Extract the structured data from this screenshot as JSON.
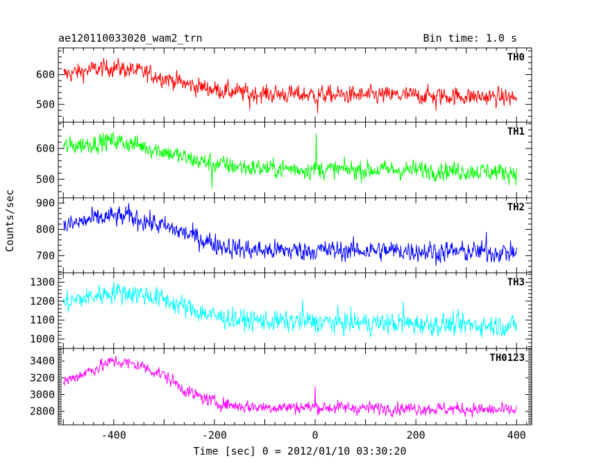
{
  "header": {
    "title": "ae120110033020_wam2_trn",
    "bin_time": "Bin time: 1.0 s"
  },
  "axes": {
    "xlabel": "Time [sec] 0 = 2012/01/10 03:30:20",
    "ylabel": "Counts/sec"
  },
  "chart_data": {
    "type": "line",
    "title": "ae120110033020_wam2_trn",
    "xlabel": "Time [sec] 0 = 2012/01/10 03:30:20",
    "ylabel": "Counts/sec",
    "xlim": [
      -510,
      430
    ],
    "x_ticks": [
      "-400",
      "-200",
      "0",
      "200",
      "400"
    ],
    "x_start": -500,
    "x_end": 400,
    "bin_time_s": 1.0,
    "panels": [
      {
        "name": "TH0",
        "color": "#ff0000",
        "ylim": [
          440,
          690
        ],
        "y_ticks": [
          "500",
          "600"
        ],
        "y_tick_values": [
          500,
          600
        ],
        "profile": {
          "x": [
            -500,
            -450,
            -400,
            -350,
            -300,
            -250,
            -200,
            -150,
            -100,
            0,
            100,
            200,
            300,
            400
          ],
          "y": [
            600,
            615,
            625,
            610,
            590,
            565,
            550,
            540,
            535,
            532,
            530,
            530,
            527,
            522
          ]
        },
        "noise_amplitude": 35,
        "spikes": [
          {
            "x": -130,
            "y": 482
          },
          {
            "x": 5,
            "y": 470
          },
          {
            "x": 240,
            "y": 478
          }
        ]
      },
      {
        "name": "TH1",
        "color": "#00ff00",
        "ylim": [
          440,
          685
        ],
        "y_ticks": [
          "500",
          "600"
        ],
        "y_tick_values": [
          500,
          600
        ],
        "profile": {
          "x": [
            -500,
            -450,
            -400,
            -350,
            -300,
            -250,
            -200,
            -150,
            -100,
            0,
            100,
            200,
            300,
            400
          ],
          "y": [
            605,
            615,
            625,
            610,
            590,
            565,
            550,
            540,
            535,
            532,
            530,
            530,
            527,
            522
          ]
        },
        "noise_amplitude": 35,
        "spikes": [
          {
            "x": 2,
            "y": 650
          },
          {
            "x": -205,
            "y": 470
          }
        ]
      },
      {
        "name": "TH2",
        "color": "#0000ff",
        "ylim": [
          635,
          920
        ],
        "y_ticks": [
          "700",
          "800",
          "900"
        ],
        "y_tick_values": [
          700,
          800,
          900
        ],
        "profile": {
          "x": [
            -500,
            -450,
            -400,
            -350,
            -300,
            -250,
            -200,
            -150,
            -100,
            0,
            100,
            200,
            300,
            400
          ],
          "y": [
            810,
            835,
            850,
            840,
            810,
            780,
            745,
            725,
            720,
            720,
            720,
            718,
            715,
            712
          ]
        },
        "noise_amplitude": 45,
        "spikes": [
          {
            "x": -370,
            "y": 900
          },
          {
            "x": 340,
            "y": 790
          },
          {
            "x": 240,
            "y": 660
          }
        ]
      },
      {
        "name": "TH3",
        "color": "#00ffff",
        "ylim": [
          950,
          1350
        ],
        "y_ticks": [
          "1000",
          "1100",
          "1200",
          "1300"
        ],
        "y_tick_values": [
          1000,
          1100,
          1200,
          1300
        ],
        "profile": {
          "x": [
            -500,
            -450,
            -400,
            -350,
            -300,
            -250,
            -200,
            -150,
            -100,
            0,
            100,
            200,
            300,
            400
          ],
          "y": [
            1190,
            1220,
            1250,
            1240,
            1210,
            1160,
            1120,
            1100,
            1095,
            1090,
            1085,
            1080,
            1075,
            1070
          ]
        },
        "noise_amplitude": 65,
        "spikes": [
          {
            "x": -25,
            "y": 1210
          },
          {
            "x": 175,
            "y": 1200
          }
        ]
      },
      {
        "name": "TH0123",
        "color": "#ff00ff",
        "ylim": [
          2640,
          3550
        ],
        "y_ticks": [
          "2800",
          "3000",
          "3200",
          "3400"
        ],
        "y_tick_values": [
          2800,
          3000,
          3200,
          3400
        ],
        "profile": {
          "x": [
            -500,
            -450,
            -400,
            -350,
            -300,
            -250,
            -200,
            -150,
            -100,
            0,
            100,
            200,
            300,
            400
          ],
          "y": [
            3150,
            3280,
            3400,
            3350,
            3230,
            3020,
            2910,
            2860,
            2850,
            2850,
            2840,
            2835,
            2825,
            2810
          ]
        },
        "noise_amplitude": 90,
        "spikes": [
          {
            "x": 0,
            "y": 3100
          }
        ]
      }
    ]
  }
}
